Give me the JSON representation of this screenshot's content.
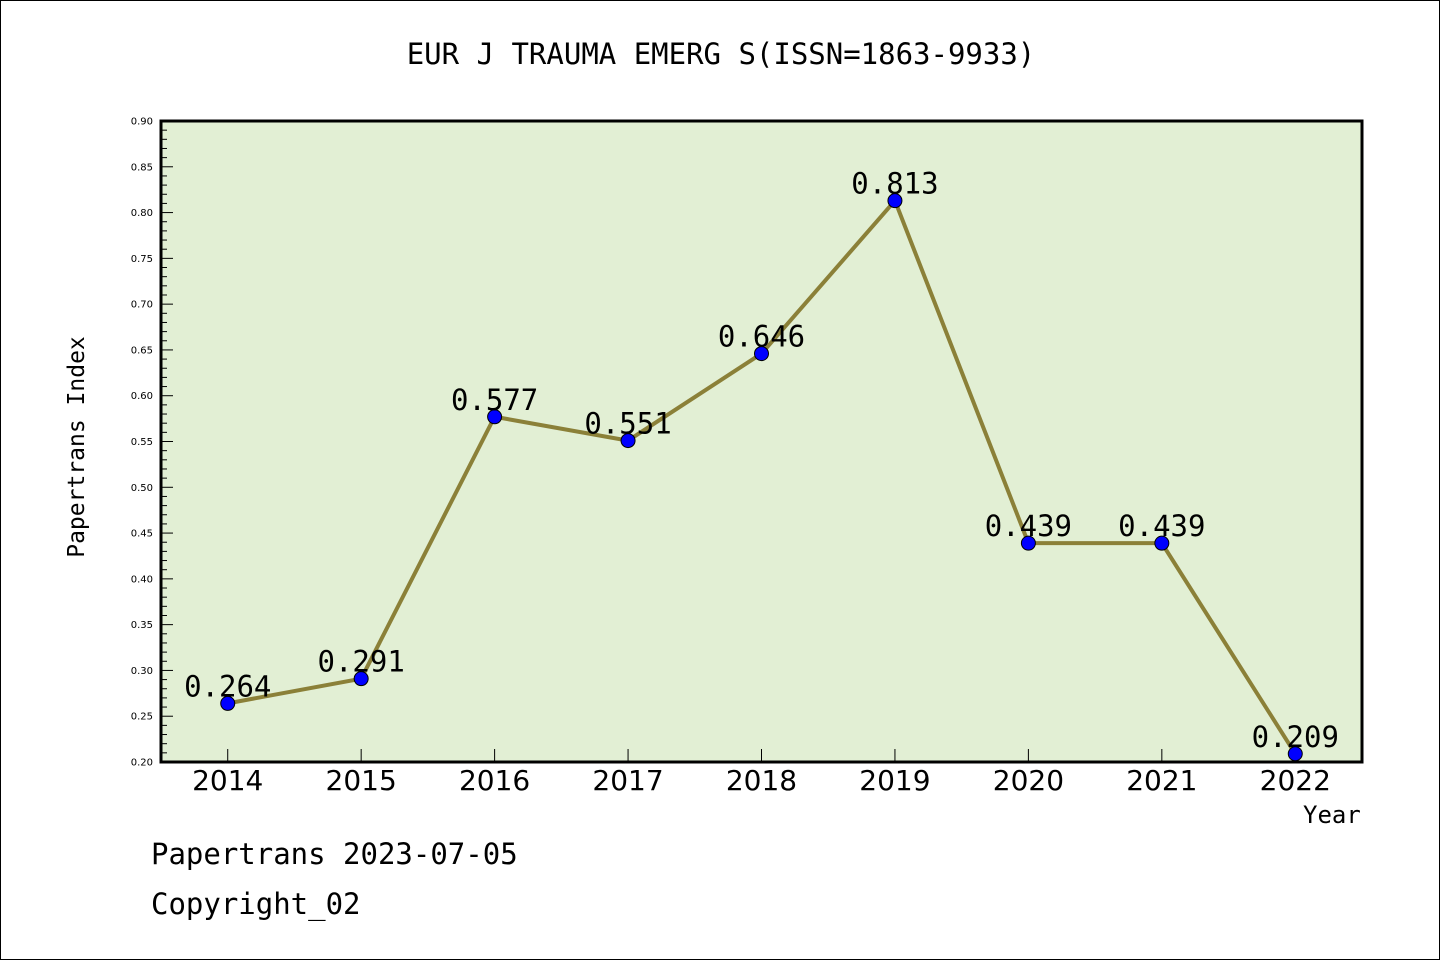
{
  "title": "EUR J TRAUMA EMERG S(ISSN=1863-9933)",
  "footer": {
    "line1": "Papertrans 2023-07-05",
    "line2": "Copyright_02"
  },
  "colors": {
    "plot_background": "#e2efd4",
    "line": "#8b8038",
    "marker": "#0000ff"
  },
  "chart_data": {
    "type": "line",
    "title": "EUR J TRAUMA EMERG S(ISSN=1863-9933)",
    "xlabel": "Year",
    "ylabel": "Papertrans Index",
    "categories": [
      "2014",
      "2015",
      "2016",
      "2017",
      "2018",
      "2019",
      "2020",
      "2021",
      "2022"
    ],
    "series": [
      {
        "values": [
          0.264,
          0.291,
          0.577,
          0.551,
          0.646,
          0.813,
          0.439,
          0.439,
          0.209
        ],
        "labels": [
          "0.264",
          "0.291",
          "0.577",
          "0.551",
          "0.646",
          "0.813",
          "0.439",
          "0.439",
          "0.209"
        ]
      }
    ],
    "ylim": [
      0.2,
      0.9
    ],
    "yticks": [
      "0.20",
      "0.25",
      "0.30",
      "0.35",
      "0.40",
      "0.45",
      "0.50",
      "0.55",
      "0.60",
      "0.65",
      "0.70",
      "0.75",
      "0.80",
      "0.85",
      "0.90"
    ],
    "grid": false,
    "legend": "none"
  }
}
